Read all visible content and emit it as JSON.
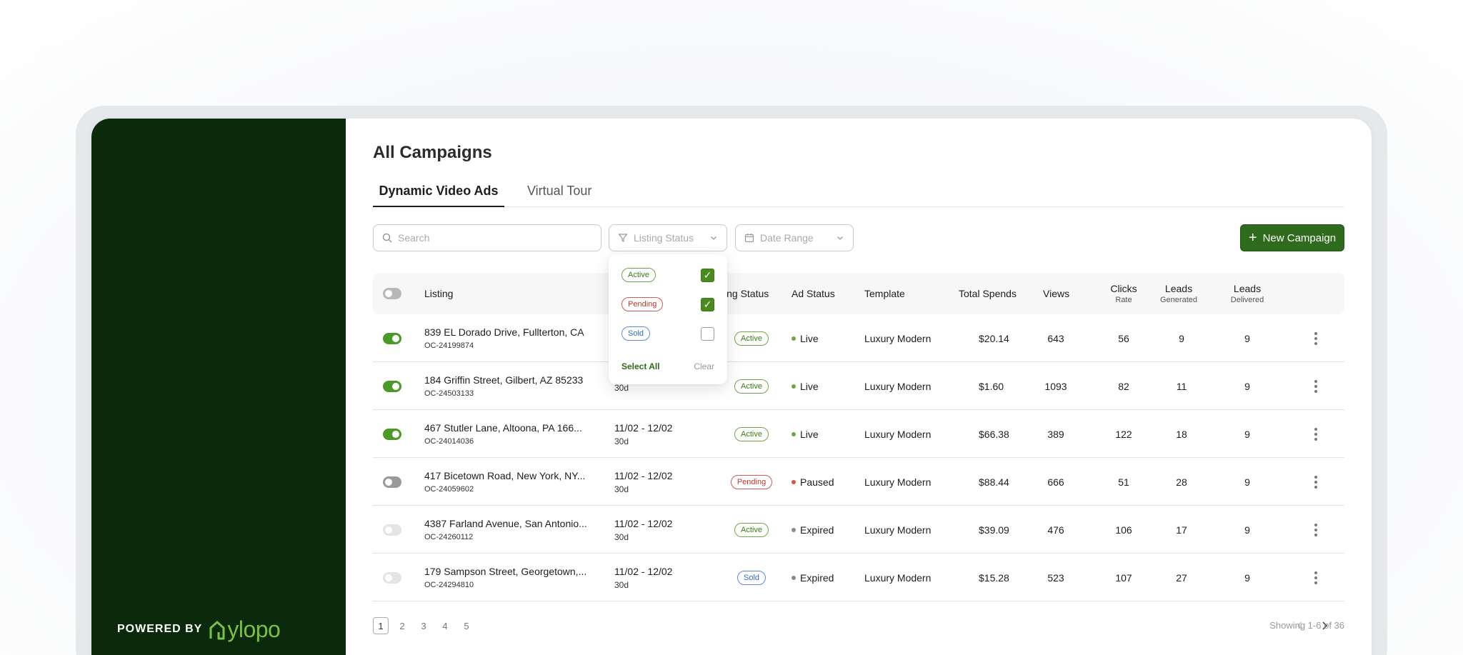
{
  "sidebar": {
    "powered_by": "POWERED BY",
    "brand": "ylopo"
  },
  "main": {
    "title": "All Campaigns",
    "tabs": [
      {
        "label": "Dynamic Video Ads",
        "active": true
      },
      {
        "label": "Virtual Tour",
        "active": false
      }
    ]
  },
  "toolbar": {
    "search_placeholder": "Search",
    "listing_status_label": "Listing Status",
    "date_range_label": "Date Range",
    "new_campaign_label": "New Campaign"
  },
  "dropdown": {
    "options": [
      {
        "label": "Active",
        "variant": "active",
        "checked": true
      },
      {
        "label": "Pending",
        "variant": "pending",
        "checked": true
      },
      {
        "label": "Sold",
        "variant": "sold",
        "checked": false
      }
    ],
    "select_all": "Select All",
    "clear": "Clear"
  },
  "table": {
    "headers": {
      "listing": "Listing",
      "listing_status": "ing Status",
      "ad_status": "Ad Status",
      "template": "Template",
      "total_spends": "Total Spends",
      "views": "Views",
      "clicks": "Clicks",
      "clicks_sub": "Rate",
      "leads_gen": "Leads",
      "leads_gen_sub": "Generated",
      "leads_del": "Leads",
      "leads_del_sub": "Delivered"
    },
    "rows": [
      {
        "toggle": "on",
        "address": "839 EL Dorado Drive, Fullterton, CA",
        "id": "OC-24199874",
        "date": "",
        "duration": "",
        "status": "Active",
        "status_variant": "active",
        "ad_status": "Live",
        "ad_color": "#6ea746",
        "template": "Luxury Modern",
        "spend": "$20.14",
        "views": "643",
        "clicks": "56",
        "leads_gen": "9",
        "leads_del": "9"
      },
      {
        "toggle": "on",
        "address": "184 Griffin Street, Gilbert, AZ 85233",
        "id": "OC-24503133",
        "date": "",
        "duration": "30d",
        "status": "Active",
        "status_variant": "active",
        "ad_status": "Live",
        "ad_color": "#6ea746",
        "template": "Luxury Modern",
        "spend": "$1.60",
        "views": "1093",
        "clicks": "82",
        "leads_gen": "11",
        "leads_del": "9"
      },
      {
        "toggle": "on",
        "address": "467 Stutler Lane, Altoona, PA 166...",
        "id": "OC-24014036",
        "date": "11/02 - 12/02",
        "duration": "30d",
        "status": "Active",
        "status_variant": "active",
        "ad_status": "Live",
        "ad_color": "#6ea746",
        "template": "Luxury Modern",
        "spend": "$66.38",
        "views": "389",
        "clicks": "122",
        "leads_gen": "18",
        "leads_del": "9"
      },
      {
        "toggle": "off",
        "address": "417 Bicetown Road, New York, NY...",
        "id": "OC-24059602",
        "date": "11/02 - 12/02",
        "duration": "30d",
        "status": "Pending",
        "status_variant": "pending",
        "ad_status": "Paused",
        "ad_color": "#d9534f",
        "template": "Luxury Modern",
        "spend": "$88.44",
        "views": "666",
        "clicks": "51",
        "leads_gen": "28",
        "leads_del": "9"
      },
      {
        "toggle": "disabled",
        "address": "4387 Farland Avenue, San Antonio...",
        "id": "OC-24260112",
        "date": "11/02 - 12/02",
        "duration": "30d",
        "status": "Active",
        "status_variant": "active",
        "ad_status": "Expired",
        "ad_color": "#8a8a8a",
        "template": "Luxury Modern",
        "spend": "$39.09",
        "views": "476",
        "clicks": "106",
        "leads_gen": "17",
        "leads_del": "9"
      },
      {
        "toggle": "disabled",
        "address": "179 Sampson Street, Georgetown,...",
        "id": "OC-24294810",
        "date": "11/02 - 12/02",
        "duration": "30d",
        "status": "Sold",
        "status_variant": "sold",
        "ad_status": "Expired",
        "ad_color": "#8a8a8a",
        "template": "Luxury Modern",
        "spend": "$15.28",
        "views": "523",
        "clicks": "107",
        "leads_gen": "27",
        "leads_del": "9"
      }
    ]
  },
  "pagination": {
    "pages": [
      "1",
      "2",
      "3",
      "4",
      "5"
    ],
    "current": "1",
    "showing": "Showing 1-6 of 36"
  }
}
